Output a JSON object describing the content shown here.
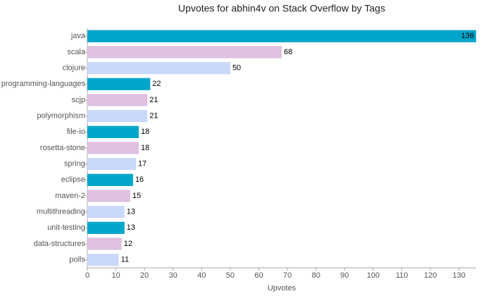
{
  "chart_data": {
    "type": "hbar",
    "title": "Upvotes for abhin4v on Stack Overflow by Tags",
    "x_label": "Upvotes",
    "categories": [
      "java",
      "scala",
      "clojure",
      "programming-languages",
      "scjp",
      "polymorphism",
      "file-io",
      "rosetta-stone",
      "spring",
      "eclipse",
      "maven-2",
      "multithreading",
      "unit-testing",
      "data-structures",
      "polls"
    ],
    "values": [
      136,
      68,
      50,
      22,
      21,
      21,
      18,
      18,
      17,
      16,
      15,
      13,
      13,
      12,
      11
    ],
    "colors": [
      "#00a6c9",
      "#dfc0e1",
      "#c9d9fb"
    ],
    "xlim": [
      0,
      136
    ],
    "xticks": [
      0,
      10,
      20,
      30,
      40,
      50,
      60,
      70,
      80,
      90,
      100,
      110,
      120,
      130
    ],
    "grid": false
  }
}
